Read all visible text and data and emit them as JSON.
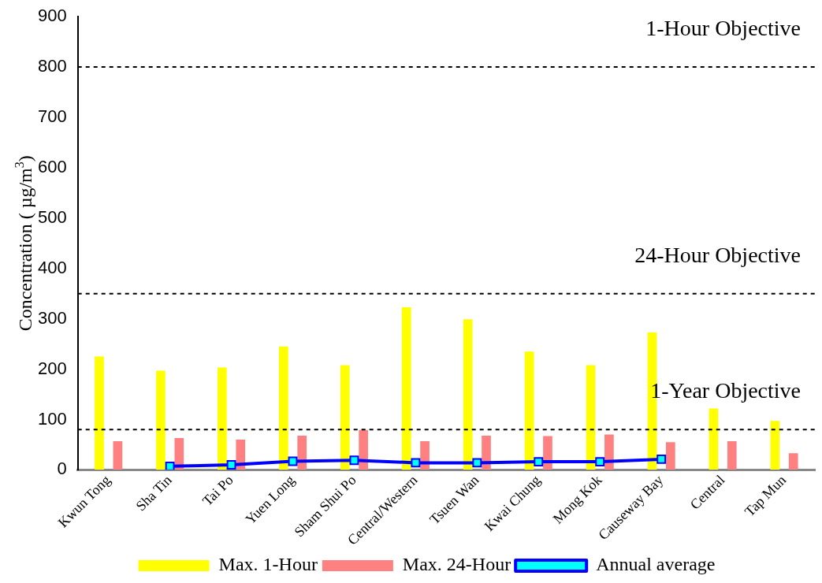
{
  "chart_data": {
    "type": "bar",
    "ylabel": "Concentration ( µg/m$^{3}$)",
    "categories": [
      "Kwun Tong",
      "Sha Tin",
      "Tai Po",
      "Yuen Long",
      "Sham Shui Po",
      "Central/Western",
      "Tsuen Wan",
      "Kwai Chung",
      "Mong Kok",
      "Causeway Bay",
      "Central",
      "Tap Mun"
    ],
    "series": [
      {
        "name": "Max. 1-Hour",
        "color": "#ffff00",
        "values": [
          225,
          197,
          203,
          245,
          208,
          323,
          299,
          235,
          208,
          273,
          122,
          97
        ]
      },
      {
        "name": "Max. 24-Hour",
        "color": "#ff8080",
        "values": [
          57,
          63,
          60,
          68,
          79,
          57,
          68,
          67,
          70,
          55,
          57,
          33
        ]
      },
      {
        "name": "Annual average",
        "type": "line",
        "color": "#0000ff",
        "marker": "square",
        "values": [
          null,
          7,
          10,
          17,
          19,
          14,
          14,
          16,
          16,
          21,
          null,
          null
        ]
      }
    ],
    "ylim": [
      0,
      900
    ],
    "yticks": [
      0,
      100,
      200,
      300,
      400,
      500,
      600,
      700,
      800,
      900
    ],
    "ref_lines": [
      {
        "axis": "y",
        "value": 800,
        "label": "1-Hour Objective",
        "line_style": "dashed"
      },
      {
        "axis": "y",
        "value": 350,
        "label": "24-Hour Objective",
        "line_style": "dashed"
      },
      {
        "axis": "y",
        "value": 80,
        "label": "1-Year Objective",
        "line_style": "dashed"
      }
    ],
    "grid": false,
    "legend": "bottom"
  }
}
